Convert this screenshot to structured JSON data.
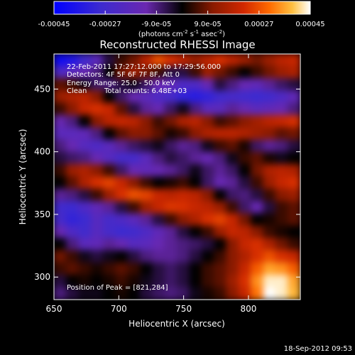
{
  "chart_data": {
    "type": "heatmap",
    "title": "Reconstructed RHESSI Image",
    "xlabel": "Heliocentric X (arcsec)",
    "ylabel": "Heliocentric Y (arcsec)",
    "xlim": [
      650,
      840
    ],
    "ylim": [
      282,
      478
    ],
    "x_ticks": [
      650,
      700,
      750,
      800
    ],
    "y_ticks": [
      300,
      350,
      400,
      450
    ],
    "colorbar": {
      "range": [
        -0.00045,
        0.00045
      ],
      "tick_values": [
        -0.00045,
        -0.00027,
        -9e-05,
        9e-05,
        0.00027,
        0.00045
      ],
      "tick_labels": [
        "-0.00045",
        "-0.00027",
        "-9.0e-05",
        "9.0e-05",
        "0.00027",
        "0.00045"
      ],
      "unit_label": "(photons cm",
      "unit_label_sup1": "-2",
      "unit_label_mid": " s",
      "unit_label_sup2": "-1",
      "unit_label_mid2": " asec",
      "unit_label_sup3": "-2",
      "unit_label_end": ")"
    },
    "annotations": {
      "time_range": "22-Feb-2011 17:27:12.000 to 17:29:56.000",
      "detectors": "Detectors: 4F 5F 6F 7F 8F, Att 0",
      "energy_range": "Energy Range: 25.0 - 50.0 keV",
      "algorithm": "Clean",
      "total_counts": "Total counts: 6.48E+03",
      "peak_position": "Position of Peak = [821,284]"
    },
    "footer_date": "18-Sep-2012 09:53",
    "peak": [
      821,
      284
    ],
    "image_grid": {
      "x_range": [
        650,
        840
      ],
      "y_range": [
        282,
        478
      ],
      "rows_top_to_bottom": [
        [
          0.05,
          0.1,
          0.2,
          0.3,
          0.45,
          0.55,
          0.6,
          0.7,
          0.8,
          0.75,
          0.7,
          0.65,
          0.7,
          0.75,
          0.7,
          0.65,
          0.6,
          0.65,
          0.7,
          0.72
        ],
        [
          0.25,
          0.3,
          0.35,
          0.4,
          0.5,
          0.6,
          0.65,
          0.6,
          0.55,
          0.45,
          0.45,
          0.55,
          0.65,
          0.6,
          0.55,
          0.5,
          0.55,
          0.6,
          0.65,
          0.68
        ],
        [
          0.58,
          0.55,
          0.48,
          0.42,
          0.4,
          0.45,
          0.48,
          0.42,
          0.35,
          0.32,
          0.25,
          0.25,
          0.35,
          0.45,
          0.4,
          0.35,
          0.32,
          0.38,
          0.42,
          0.45
        ],
        [
          0.65,
          0.68,
          0.7,
          0.62,
          0.5,
          0.42,
          0.35,
          0.3,
          0.25,
          0.22,
          0.15,
          0.12,
          0.15,
          0.2,
          0.22,
          0.2,
          0.18,
          0.2,
          0.25,
          0.32
        ],
        [
          0.55,
          0.62,
          0.72,
          0.75,
          0.72,
          0.58,
          0.45,
          0.38,
          0.35,
          0.42,
          0.48,
          0.4,
          0.3,
          0.3,
          0.38,
          0.35,
          0.3,
          0.32,
          0.35,
          0.4
        ],
        [
          0.35,
          0.4,
          0.5,
          0.62,
          0.7,
          0.72,
          0.7,
          0.62,
          0.55,
          0.6,
          0.68,
          0.7,
          0.62,
          0.55,
          0.58,
          0.62,
          0.66,
          0.7,
          0.72,
          0.75
        ],
        [
          0.3,
          0.3,
          0.32,
          0.4,
          0.5,
          0.58,
          0.62,
          0.62,
          0.58,
          0.52,
          0.55,
          0.62,
          0.68,
          0.7,
          0.7,
          0.68,
          0.65,
          0.62,
          0.58,
          0.6
        ],
        [
          0.4,
          0.35,
          0.28,
          0.25,
          0.3,
          0.38,
          0.42,
          0.45,
          0.48,
          0.42,
          0.38,
          0.4,
          0.48,
          0.55,
          0.58,
          0.52,
          0.42,
          0.38,
          0.4,
          0.45
        ],
        [
          0.45,
          0.42,
          0.4,
          0.35,
          0.28,
          0.22,
          0.22,
          0.3,
          0.4,
          0.45,
          0.42,
          0.38,
          0.35,
          0.4,
          0.48,
          0.55,
          0.58,
          0.52,
          0.48,
          0.5
        ],
        [
          0.55,
          0.65,
          0.68,
          0.62,
          0.55,
          0.42,
          0.35,
          0.32,
          0.35,
          0.38,
          0.42,
          0.48,
          0.42,
          0.38,
          0.42,
          0.5,
          0.6,
          0.68,
          0.7,
          0.68
        ],
        [
          0.5,
          0.58,
          0.68,
          0.75,
          0.78,
          0.72,
          0.62,
          0.55,
          0.5,
          0.52,
          0.55,
          0.5,
          0.42,
          0.35,
          0.38,
          0.45,
          0.55,
          0.65,
          0.72,
          0.75
        ],
        [
          0.38,
          0.4,
          0.45,
          0.55,
          0.65,
          0.75,
          0.8,
          0.78,
          0.72,
          0.7,
          0.72,
          0.7,
          0.62,
          0.5,
          0.42,
          0.4,
          0.45,
          0.55,
          0.62,
          0.65
        ],
        [
          0.2,
          0.18,
          0.25,
          0.32,
          0.38,
          0.45,
          0.55,
          0.65,
          0.72,
          0.76,
          0.75,
          0.72,
          0.7,
          0.65,
          0.55,
          0.42,
          0.35,
          0.45,
          0.55,
          0.58
        ],
        [
          0.22,
          0.15,
          0.18,
          0.28,
          0.22,
          0.25,
          0.3,
          0.38,
          0.45,
          0.55,
          0.62,
          0.68,
          0.75,
          0.78,
          0.72,
          0.6,
          0.5,
          0.52,
          0.55,
          0.58
        ],
        [
          0.35,
          0.25,
          0.2,
          0.28,
          0.22,
          0.18,
          0.2,
          0.25,
          0.32,
          0.38,
          0.45,
          0.5,
          0.55,
          0.65,
          0.72,
          0.7,
          0.62,
          0.55,
          0.52,
          0.5
        ],
        [
          0.5,
          0.4,
          0.3,
          0.32,
          0.38,
          0.35,
          0.28,
          0.3,
          0.35,
          0.38,
          0.4,
          0.42,
          0.45,
          0.5,
          0.62,
          0.72,
          0.75,
          0.68,
          0.6,
          0.55
        ],
        [
          0.6,
          0.55,
          0.48,
          0.45,
          0.48,
          0.5,
          0.45,
          0.4,
          0.38,
          0.38,
          0.4,
          0.45,
          0.5,
          0.55,
          0.62,
          0.68,
          0.75,
          0.8,
          0.75,
          0.72
        ],
        [
          0.55,
          0.58,
          0.55,
          0.52,
          0.55,
          0.58,
          0.55,
          0.5,
          0.45,
          0.42,
          0.45,
          0.5,
          0.55,
          0.58,
          0.62,
          0.72,
          0.82,
          0.9,
          0.88,
          0.82
        ],
        [
          0.45,
          0.5,
          0.52,
          0.5,
          0.52,
          0.55,
          0.52,
          0.48,
          0.45,
          0.42,
          0.45,
          0.5,
          0.55,
          0.58,
          0.65,
          0.75,
          0.88,
          0.98,
          0.98,
          0.9
        ],
        [
          0.4,
          0.45,
          0.48,
          0.48,
          0.5,
          0.52,
          0.5,
          0.45,
          0.42,
          0.4,
          0.42,
          0.48,
          0.52,
          0.55,
          0.62,
          0.72,
          0.85,
          1.0,
          0.98,
          0.92
        ]
      ]
    }
  }
}
